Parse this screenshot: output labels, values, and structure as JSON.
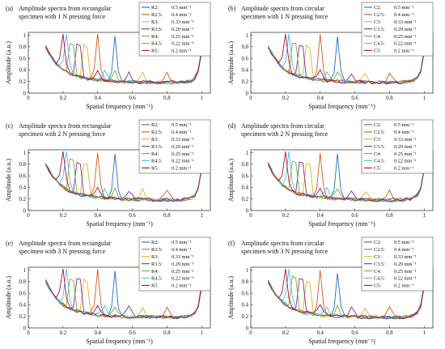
{
  "figure": {
    "panels_note": "six panels"
  },
  "chart_data": [
    {
      "type": "line",
      "panel_label": "(a)",
      "title_lines": [
        "Amplitude spectra from rectangular",
        "specimen with 1 N pressing force"
      ],
      "xlabel": "Spatial frequency (mm⁻¹)",
      "ylabel": "Amplitude (a.u.)",
      "xlim": [
        0,
        1.05
      ],
      "ylim": [
        0,
        1.05
      ],
      "xticks": [
        "0",
        "0.2",
        "0.4",
        "0.6",
        "0.8",
        "1"
      ],
      "yticks": [
        "0",
        "0.2",
        "0.4",
        "0.6",
        "0.8",
        "1"
      ],
      "series": [
        {
          "name": "R2:",
          "freq": "0.5 mm⁻¹",
          "peak": 0.5,
          "color": "#1f6fc1"
        },
        {
          "name": "R2.5:",
          "freq": "0.4 mm⁻¹",
          "peak": 0.4,
          "color": "#d35a1a"
        },
        {
          "name": "R3:",
          "freq": "0.33 mm⁻¹",
          "peak": 0.33,
          "color": "#e3b11c"
        },
        {
          "name": "R3.5:",
          "freq": "0.29 mm⁻¹",
          "peak": 0.29,
          "color": "#7b2f8e"
        },
        {
          "name": "R4:",
          "freq": "0.25 mm⁻¹",
          "peak": 0.25,
          "color": "#77ac30"
        },
        {
          "name": "R4.5:",
          "freq": "0.22 mm⁻¹",
          "peak": 0.22,
          "color": "#4dbeee"
        },
        {
          "name": "R5:",
          "freq": "0.2 mm⁻¹",
          "peak": 0.2,
          "color": "#a2142f"
        }
      ]
    },
    {
      "type": "line",
      "panel_label": "(b)",
      "title_lines": [
        "Amplitude spectra from circular",
        "specimen with 1 N pressing force"
      ],
      "xlabel": "Spatial frequency (mm⁻¹)",
      "ylabel": "Amplitude (a.u.)",
      "xlim": [
        0,
        1.05
      ],
      "ylim": [
        0,
        1.05
      ],
      "xticks": [
        "0",
        "0.2",
        "0.4",
        "0.6",
        "0.8",
        "1"
      ],
      "yticks": [
        "0",
        "0.2",
        "0.4",
        "0.6",
        "0.8",
        "1"
      ],
      "series": [
        {
          "name": "C2:",
          "freq": "0.5 mm⁻¹",
          "peak": 0.5,
          "color": "#1f6fc1"
        },
        {
          "name": "C2.5:",
          "freq": "0.4 mm⁻¹",
          "peak": 0.4,
          "color": "#d35a1a"
        },
        {
          "name": "C3:",
          "freq": "0.33 mm⁻¹",
          "peak": 0.33,
          "color": "#e3b11c"
        },
        {
          "name": "C3.5:",
          "freq": "0.29 mm⁻¹",
          "peak": 0.29,
          "color": "#7b2f8e"
        },
        {
          "name": "C4:",
          "freq": "0.25 mm⁻¹",
          "peak": 0.25,
          "color": "#77ac30"
        },
        {
          "name": "C4.5:",
          "freq": "0.22 mm⁻¹",
          "peak": 0.22,
          "color": "#4dbeee"
        },
        {
          "name": "C5:",
          "freq": "0.2 mm⁻¹",
          "peak": 0.2,
          "color": "#a2142f"
        }
      ]
    },
    {
      "type": "line",
      "panel_label": "(c)",
      "title_lines": [
        "Amplitude spectra from rectangular",
        "specimen with 2 N pressing force"
      ],
      "xlabel": "Spatial frequency (mm⁻¹)",
      "ylabel": "Amplitude (a.u.)",
      "xlim": [
        0,
        1.05
      ],
      "ylim": [
        0,
        1.05
      ],
      "xticks": [
        "0",
        "0.2",
        "0.4",
        "0.6",
        "0.8",
        "1"
      ],
      "yticks": [
        "0",
        "0.2",
        "0.4",
        "0.6",
        "0.8",
        "1"
      ],
      "series": [
        {
          "name": "R2:",
          "freq": "0.5 mm⁻¹",
          "peak": 0.5,
          "color": "#1f6fc1"
        },
        {
          "name": "R2.5:",
          "freq": "0.4 mm⁻¹",
          "peak": 0.4,
          "color": "#d35a1a"
        },
        {
          "name": "R3:",
          "freq": "0.33 mm⁻¹",
          "peak": 0.33,
          "color": "#e3b11c"
        },
        {
          "name": "R3.5:",
          "freq": "0.29 mm⁻¹",
          "peak": 0.29,
          "color": "#7b2f8e"
        },
        {
          "name": "R4:",
          "freq": "0.25 mm⁻¹",
          "peak": 0.25,
          "color": "#77ac30"
        },
        {
          "name": "R4.5:",
          "freq": "0.22 mm⁻¹",
          "peak": 0.22,
          "color": "#4dbeee"
        },
        {
          "name": "R5:",
          "freq": "0.2 mm⁻¹",
          "peak": 0.2,
          "color": "#a2142f"
        }
      ]
    },
    {
      "type": "line",
      "panel_label": "(d)",
      "title_lines": [
        "Amplitude spectra from circular",
        "specimen with 2 N pressing force"
      ],
      "xlabel": "Spatial frequency (mm⁻¹)",
      "ylabel": "Amplitude (a.u.)",
      "xlim": [
        0,
        1.05
      ],
      "ylim": [
        0,
        1.05
      ],
      "xticks": [
        "0",
        "0.2",
        "0.4",
        "0.6",
        "0.8",
        "1"
      ],
      "yticks": [
        "0",
        "0.2",
        "0.4",
        "0.6",
        "0.8",
        "1"
      ],
      "series": [
        {
          "name": "C2:",
          "freq": "0.5 mm⁻¹",
          "peak": 0.5,
          "color": "#1f6fc1"
        },
        {
          "name": "C2.5:",
          "freq": "0.4 mm⁻¹",
          "peak": 0.4,
          "color": "#d35a1a"
        },
        {
          "name": "C3:",
          "freq": "0.33 mm⁻¹",
          "peak": 0.33,
          "color": "#e3b11c"
        },
        {
          "name": "C3.5:",
          "freq": "0.29 mm⁻¹",
          "peak": 0.29,
          "color": "#7b2f8e"
        },
        {
          "name": "C4:",
          "freq": "0.25 mm⁻¹",
          "peak": 0.25,
          "color": "#77ac30"
        },
        {
          "name": "C4.5:",
          "freq": "0.22 mm⁻¹",
          "peak": 0.22,
          "color": "#4dbeee"
        },
        {
          "name": "C5:",
          "freq": "0.2 mm⁻¹",
          "peak": 0.2,
          "color": "#a2142f"
        }
      ]
    },
    {
      "type": "line",
      "panel_label": "(e)",
      "title_lines": [
        "Amplitude spectra from rectangular",
        "specimen with 3 N pressing force"
      ],
      "xlabel": "Spatial frequency (mm⁻¹)",
      "ylabel": "Amplitude (a.u.)",
      "xlim": [
        0,
        1.05
      ],
      "ylim": [
        0,
        1.05
      ],
      "xticks": [
        "0",
        "0.2",
        "0.4",
        "0.6",
        "0.8",
        "1"
      ],
      "yticks": [
        "0",
        "0.2",
        "0.4",
        "0.6",
        "0.8",
        "1"
      ],
      "series": [
        {
          "name": "R2:",
          "freq": "0.5 mm⁻¹",
          "peak": 0.5,
          "color": "#1f6fc1"
        },
        {
          "name": "R2.5:",
          "freq": "0.4 mm⁻¹",
          "peak": 0.4,
          "color": "#d35a1a"
        },
        {
          "name": "R3:",
          "freq": "0.33 mm⁻¹",
          "peak": 0.33,
          "color": "#e3b11c"
        },
        {
          "name": "R3.5:",
          "freq": "0.29 mm⁻¹",
          "peak": 0.29,
          "color": "#7b2f8e"
        },
        {
          "name": "R4:",
          "freq": "0.25 mm⁻¹",
          "peak": 0.25,
          "color": "#77ac30"
        },
        {
          "name": "R4.5:",
          "freq": "0.22 mm⁻¹",
          "peak": 0.22,
          "color": "#4dbeee"
        },
        {
          "name": "R5:",
          "freq": "0.2 mm⁻¹",
          "peak": 0.2,
          "color": "#a2142f"
        }
      ]
    },
    {
      "type": "line",
      "panel_label": "(f)",
      "title_lines": [
        "Amplitude spectra from circular",
        "specimen with 3 N pressing force"
      ],
      "xlabel": "Spatial frequency (mm⁻¹)",
      "ylabel": "Amplitude (a.u.)",
      "xlim": [
        0,
        1.05
      ],
      "ylim": [
        0,
        1.05
      ],
      "xticks": [
        "0",
        "0.2",
        "0.4",
        "0.6",
        "0.8",
        "1"
      ],
      "yticks": [
        "0",
        "0.2",
        "0.4",
        "0.6",
        "0.8",
        "1"
      ],
      "series": [
        {
          "name": "C2:",
          "freq": "0.5 mm⁻¹",
          "peak": 0.5,
          "color": "#1f6fc1"
        },
        {
          "name": "C2.5:",
          "freq": "0.4 mm⁻¹",
          "peak": 0.4,
          "color": "#d35a1a"
        },
        {
          "name": "C3:",
          "freq": "0.33 mm⁻¹",
          "peak": 0.33,
          "color": "#e3b11c"
        },
        {
          "name": "C3.5:",
          "freq": "0.29 mm⁻¹",
          "peak": 0.29,
          "color": "#7b2f8e"
        },
        {
          "name": "C4:",
          "freq": "0.25 mm⁻¹",
          "peak": 0.25,
          "color": "#77ac30"
        },
        {
          "name": "C4.5:",
          "freq": "0.22 mm⁻¹",
          "peak": 0.22,
          "color": "#4dbeee"
        },
        {
          "name": "C5:",
          "freq": "0.2 mm⁻¹",
          "peak": 0.2,
          "color": "#a2142f"
        }
      ]
    }
  ]
}
